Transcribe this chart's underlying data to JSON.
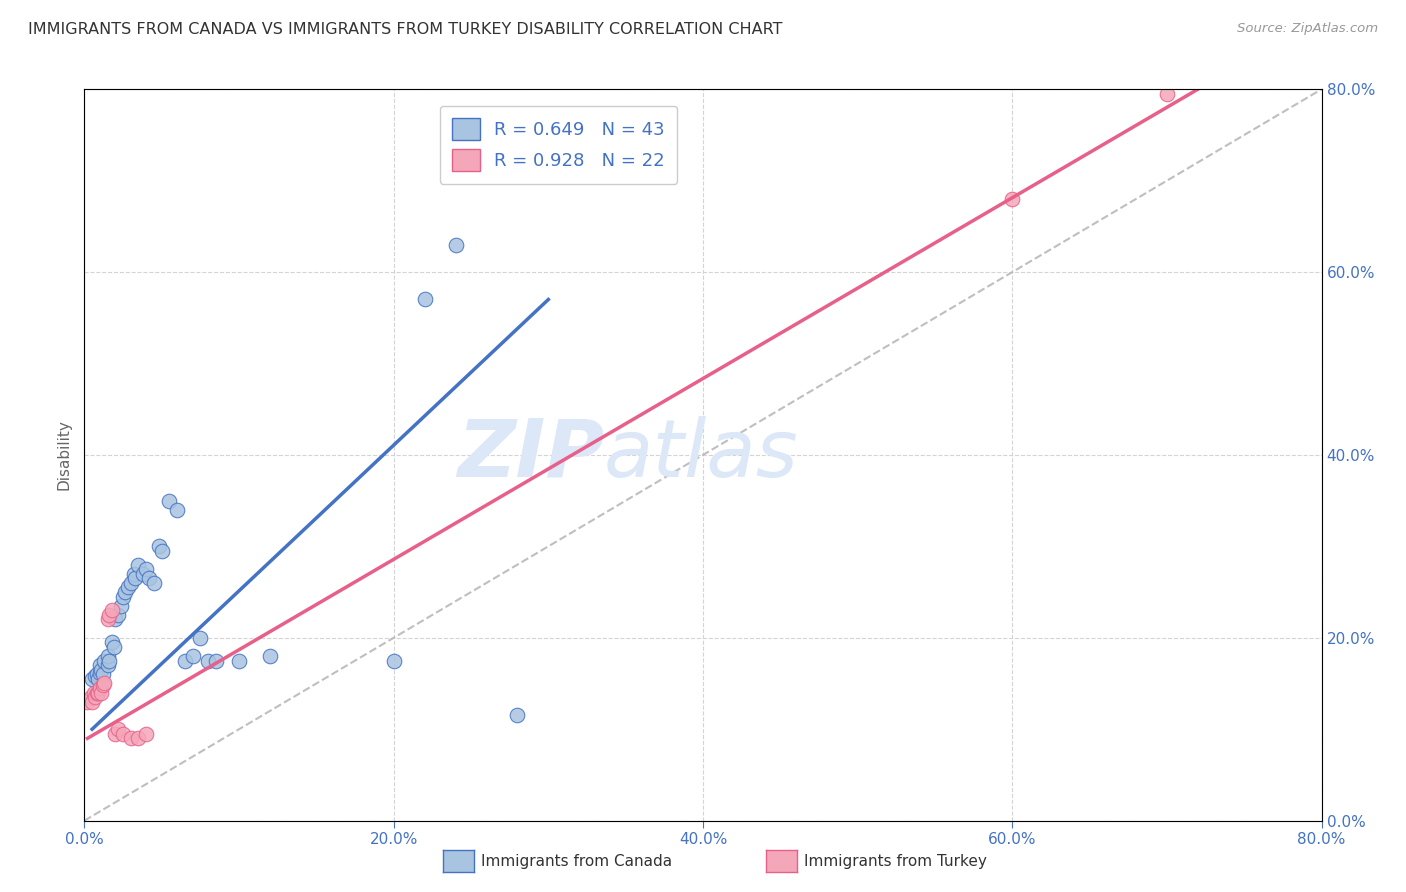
{
  "title": "IMMIGRANTS FROM CANADA VS IMMIGRANTS FROM TURKEY DISABILITY CORRELATION CHART",
  "source": "Source: ZipAtlas.com",
  "ylabel": "Disability",
  "xlabel_canada": "Immigrants from Canada",
  "xlabel_turkey": "Immigrants from Turkey",
  "xlim": [
    0.0,
    0.8
  ],
  "ylim": [
    0.0,
    0.8
  ],
  "xticks": [
    0.0,
    0.2,
    0.4,
    0.6,
    0.8
  ],
  "yticks": [
    0.0,
    0.2,
    0.4,
    0.6,
    0.8
  ],
  "canada_R": 0.649,
  "canada_N": 43,
  "turkey_R": 0.928,
  "turkey_N": 22,
  "canada_color": "#a8c4e0",
  "turkey_color": "#f4a7b9",
  "canada_line_color": "#4472c4",
  "turkey_line_color": "#e8608a",
  "diagonal_color": "#b8b8b8",
  "canada_points": [
    [
      0.005,
      0.155
    ],
    [
      0.007,
      0.158
    ],
    [
      0.008,
      0.16
    ],
    [
      0.009,
      0.155
    ],
    [
      0.01,
      0.162
    ],
    [
      0.01,
      0.17
    ],
    [
      0.011,
      0.165
    ],
    [
      0.012,
      0.16
    ],
    [
      0.013,
      0.175
    ],
    [
      0.015,
      0.17
    ],
    [
      0.015,
      0.18
    ],
    [
      0.016,
      0.175
    ],
    [
      0.018,
      0.195
    ],
    [
      0.019,
      0.19
    ],
    [
      0.02,
      0.22
    ],
    [
      0.022,
      0.225
    ],
    [
      0.024,
      0.235
    ],
    [
      0.025,
      0.245
    ],
    [
      0.026,
      0.25
    ],
    [
      0.028,
      0.255
    ],
    [
      0.03,
      0.26
    ],
    [
      0.032,
      0.27
    ],
    [
      0.033,
      0.265
    ],
    [
      0.035,
      0.28
    ],
    [
      0.038,
      0.27
    ],
    [
      0.04,
      0.275
    ],
    [
      0.042,
      0.265
    ],
    [
      0.045,
      0.26
    ],
    [
      0.048,
      0.3
    ],
    [
      0.05,
      0.295
    ],
    [
      0.055,
      0.35
    ],
    [
      0.06,
      0.34
    ],
    [
      0.065,
      0.175
    ],
    [
      0.07,
      0.18
    ],
    [
      0.075,
      0.2
    ],
    [
      0.08,
      0.175
    ],
    [
      0.085,
      0.175
    ],
    [
      0.1,
      0.175
    ],
    [
      0.12,
      0.18
    ],
    [
      0.2,
      0.175
    ],
    [
      0.22,
      0.57
    ],
    [
      0.24,
      0.63
    ],
    [
      0.28,
      0.115
    ]
  ],
  "turkey_points": [
    [
      0.002,
      0.13
    ],
    [
      0.004,
      0.135
    ],
    [
      0.005,
      0.13
    ],
    [
      0.006,
      0.14
    ],
    [
      0.007,
      0.135
    ],
    [
      0.008,
      0.14
    ],
    [
      0.009,
      0.14
    ],
    [
      0.01,
      0.145
    ],
    [
      0.011,
      0.14
    ],
    [
      0.012,
      0.148
    ],
    [
      0.013,
      0.15
    ],
    [
      0.015,
      0.22
    ],
    [
      0.016,
      0.225
    ],
    [
      0.018,
      0.23
    ],
    [
      0.02,
      0.095
    ],
    [
      0.022,
      0.1
    ],
    [
      0.025,
      0.095
    ],
    [
      0.03,
      0.09
    ],
    [
      0.035,
      0.09
    ],
    [
      0.04,
      0.095
    ],
    [
      0.6,
      0.68
    ],
    [
      0.7,
      0.795
    ]
  ],
  "canada_line_x": [
    0.005,
    0.3
  ],
  "canada_line_y": [
    0.1,
    0.57
  ],
  "turkey_line_x": [
    0.002,
    0.72
  ],
  "turkey_line_y": [
    0.09,
    0.8
  ],
  "background_color": "#ffffff",
  "grid_color": "#d0d0d0",
  "title_color": "#333333",
  "axis_label_color": "#4472c4",
  "watermark_zip": "ZIP",
  "watermark_atlas": "atlas",
  "watermark_color": "#dce8f8"
}
